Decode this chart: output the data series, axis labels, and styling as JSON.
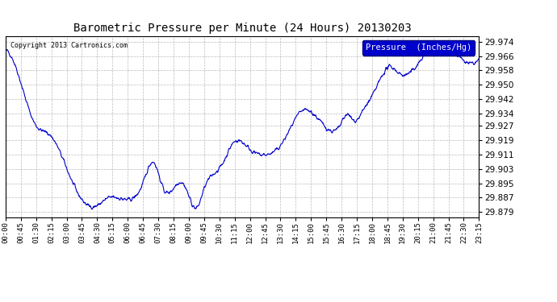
{
  "title": "Barometric Pressure per Minute (24 Hours) 20130203",
  "copyright": "Copyright 2013 Cartronics.com",
  "legend_label": "Pressure  (Inches/Hg)",
  "line_color": "#0000CC",
  "legend_bg": "#0000CC",
  "legend_text_color": "#FFFFFF",
  "background_color": "#FFFFFF",
  "grid_color": "#AAAAAA",
  "title_color": "#000000",
  "ylim": [
    29.876,
    29.977
  ],
  "yticks": [
    29.879,
    29.887,
    29.895,
    29.903,
    29.911,
    29.919,
    29.927,
    29.934,
    29.942,
    29.95,
    29.958,
    29.966,
    29.974
  ],
  "xtick_labels": [
    "00:00",
    "00:45",
    "01:30",
    "02:15",
    "03:00",
    "03:45",
    "04:30",
    "05:15",
    "06:00",
    "06:45",
    "07:30",
    "08:15",
    "09:00",
    "09:45",
    "10:30",
    "11:15",
    "12:00",
    "12:45",
    "13:30",
    "14:15",
    "15:00",
    "15:45",
    "16:30",
    "17:15",
    "18:00",
    "18:45",
    "19:30",
    "20:15",
    "21:00",
    "21:45",
    "22:30",
    "23:15"
  ],
  "figsize": [
    6.9,
    3.75
  ],
  "dpi": 100
}
